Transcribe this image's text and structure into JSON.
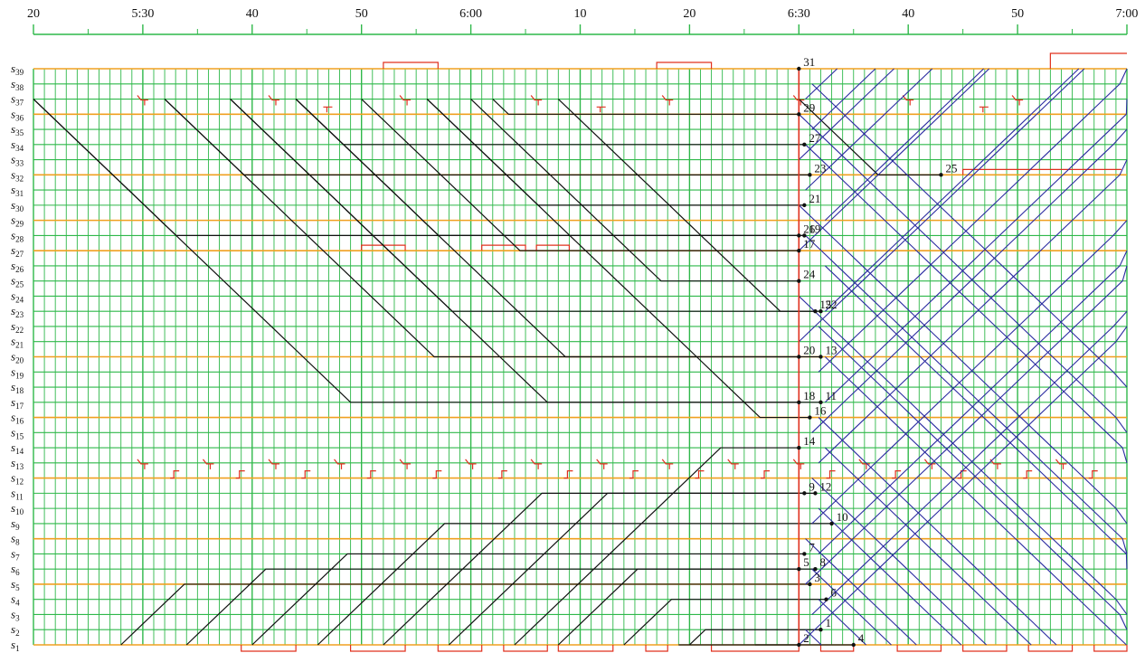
{
  "colors": {
    "grid": "#2fb84a",
    "major_station": "#f0a020",
    "inbound_train": "#111111",
    "outbound_train": "#2a2aa0",
    "depot": "#e0301e",
    "current_time": "#e0301e"
  },
  "timeline": {
    "ticks": [
      "20",
      "5:30",
      "40",
      "50",
      "6:00",
      "10",
      "20",
      "6:30",
      "40",
      "50",
      "7:00"
    ]
  },
  "chart_data": {
    "type": "train-timetable",
    "x_range_minutes": [
      320,
      420
    ],
    "current_time_minute": 390,
    "stations": [
      {
        "id": "1",
        "major": true
      },
      {
        "id": "2",
        "major": false
      },
      {
        "id": "3",
        "major": false
      },
      {
        "id": "4",
        "major": false
      },
      {
        "id": "5",
        "major": true
      },
      {
        "id": "6",
        "major": false
      },
      {
        "id": "7",
        "major": false
      },
      {
        "id": "8",
        "major": true
      },
      {
        "id": "9",
        "major": false
      },
      {
        "id": "10",
        "major": false
      },
      {
        "id": "11",
        "major": false
      },
      {
        "id": "12",
        "major": true
      },
      {
        "id": "13",
        "major": false
      },
      {
        "id": "14",
        "major": false
      },
      {
        "id": "15",
        "major": false
      },
      {
        "id": "16",
        "major": true
      },
      {
        "id": "17",
        "major": false
      },
      {
        "id": "18",
        "major": false
      },
      {
        "id": "19",
        "major": false
      },
      {
        "id": "20",
        "major": true
      },
      {
        "id": "21",
        "major": false
      },
      {
        "id": "22",
        "major": false
      },
      {
        "id": "23",
        "major": false
      },
      {
        "id": "24",
        "major": false
      },
      {
        "id": "25",
        "major": false
      },
      {
        "id": "26",
        "major": false
      },
      {
        "id": "27",
        "major": true
      },
      {
        "id": "28",
        "major": false
      },
      {
        "id": "29",
        "major": true
      },
      {
        "id": "30",
        "major": false
      },
      {
        "id": "31",
        "major": false
      },
      {
        "id": "32",
        "major": true
      },
      {
        "id": "33",
        "major": false
      },
      {
        "id": "34",
        "major": false
      },
      {
        "id": "35",
        "major": false
      },
      {
        "id": "36",
        "major": true
      },
      {
        "id": "37",
        "major": false
      },
      {
        "id": "38",
        "major": false
      },
      {
        "id": "39",
        "major": true
      }
    ],
    "trains": [
      {
        "label": "31",
        "kind": "from_top",
        "t0": 349,
        "t1": 390.0,
        "end": 39
      },
      {
        "label": "29",
        "kind": "from_top",
        "t0": 362,
        "t1": 390.0,
        "end": 36
      },
      {
        "label": "27",
        "kind": "from_top",
        "t0": 344,
        "t1": 390.5,
        "end": 34
      },
      {
        "label": "23",
        "kind": "from_top",
        "t0": 332,
        "t1": 391.0,
        "end": 32
      },
      {
        "label": "21",
        "kind": "from_top",
        "t0": 356,
        "t1": 390.5,
        "end": 30
      },
      {
        "label": "19",
        "kind": "from_top",
        "t0": 320,
        "t1": 390.5,
        "end": 28
      },
      {
        "label": "26",
        "kind": "from_top",
        "t0": 344,
        "t1": 390.0,
        "end": 28
      },
      {
        "label": "17",
        "kind": "from_top",
        "t0": 350,
        "t1": 390.0,
        "end": 27
      },
      {
        "label": "24",
        "kind": "from_top",
        "t0": 360,
        "t1": 390.0,
        "end": 25
      },
      {
        "label": "22",
        "kind": "from_top",
        "t0": 368,
        "t1": 392.0,
        "end": 23
      },
      {
        "label": "15",
        "kind": "from_top",
        "t0": 338,
        "t1": 391.5,
        "end": 23
      },
      {
        "label": "20",
        "kind": "from_top",
        "t0": 332,
        "t1": 390.0,
        "end": 20
      },
      {
        "label": "13",
        "kind": "from_top",
        "t0": 344,
        "t1": 392.0,
        "end": 20
      },
      {
        "label": "18",
        "kind": "from_top",
        "t0": 320,
        "t1": 390.0,
        "end": 17
      },
      {
        "label": "11",
        "kind": "from_top",
        "t0": 338,
        "t1": 392.0,
        "end": 17
      },
      {
        "label": "16",
        "kind": "from_top",
        "t0": 356,
        "t1": 391.0,
        "end": 16
      },
      {
        "label": "14",
        "kind": "from_bottom",
        "t0": 364,
        "t1": 390.0,
        "end": 14
      },
      {
        "label": "9",
        "kind": "from_bottom",
        "t0": 352,
        "t1": 390.5,
        "end": 11
      },
      {
        "label": "12",
        "kind": "from_bottom",
        "t0": 358,
        "t1": 391.5,
        "end": 11
      },
      {
        "label": "10",
        "kind": "from_bottom",
        "t0": 346,
        "t1": 393.0,
        "end": 9
      },
      {
        "label": "7",
        "kind": "from_bottom",
        "t0": 340,
        "t1": 390.5,
        "end": 7
      },
      {
        "label": "5",
        "kind": "from_bottom",
        "t0": 334,
        "t1": 390.0,
        "end": 6
      },
      {
        "label": "8",
        "kind": "from_bottom",
        "t0": 368,
        "t1": 391.5,
        "end": 6
      },
      {
        "label": "3",
        "kind": "from_bottom",
        "t0": 328,
        "t1": 391.0,
        "end": 5
      },
      {
        "label": "6",
        "kind": "from_bottom",
        "t0": 374,
        "t1": 392.5,
        "end": 4
      },
      {
        "label": "1",
        "kind": "from_bottom",
        "t0": 380,
        "t1": 392.0,
        "end": 2
      },
      {
        "label": "2",
        "kind": "from_bottom",
        "t0": 379,
        "t1": 390.0,
        "end": 1
      },
      {
        "label": "4",
        "kind": "from_bottom",
        "t0": 386,
        "t1": 395.0,
        "end": 1
      },
      {
        "label": "25",
        "kind": "from_top",
        "t0": 390,
        "t1": 403.0,
        "end": 32
      }
    ]
  }
}
